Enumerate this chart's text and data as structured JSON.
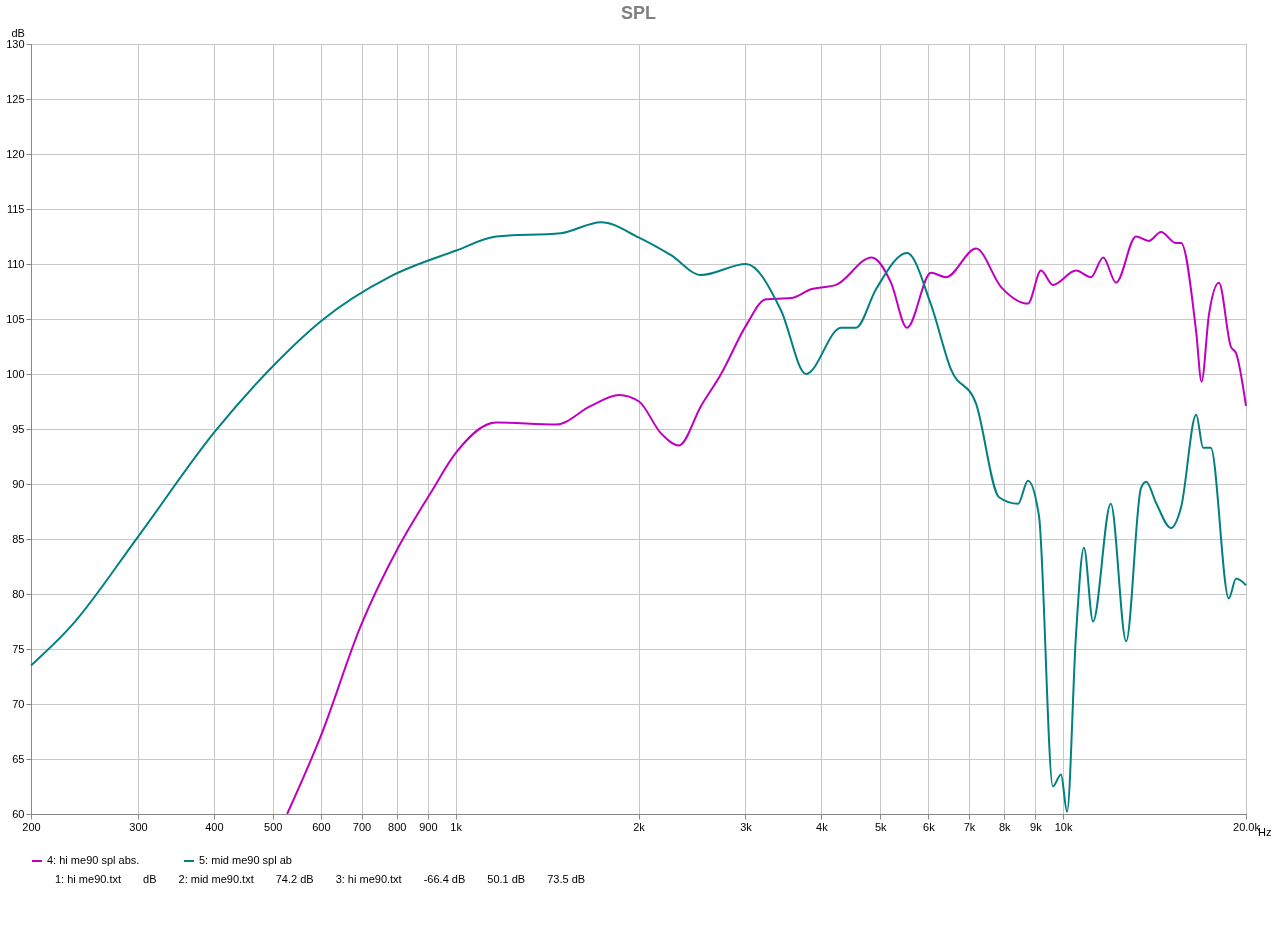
{
  "chart_data": {
    "type": "line",
    "title": "SPL",
    "xlabel": "Hz",
    "ylabel": "dB",
    "log": "x",
    "grid": true,
    "legend": "bottom",
    "line_style": "solid",
    "marker": "none",
    "xlim": [
      200,
      20000
    ],
    "xticks": [
      200,
      300,
      400,
      500,
      600,
      700,
      800,
      900,
      {
        "value": 1000,
        "label": "1k"
      },
      {
        "value": 2000,
        "label": "2k"
      },
      {
        "value": 3000,
        "label": "3k"
      },
      {
        "value": 4000,
        "label": "4k"
      },
      {
        "value": 5000,
        "label": "5k"
      },
      {
        "value": 6000,
        "label": "6k"
      },
      {
        "value": 7000,
        "label": "7k"
      },
      {
        "value": 8000,
        "label": "8k"
      },
      {
        "value": 9000,
        "label": "9k"
      },
      {
        "value": 10000,
        "label": "10k"
      },
      {
        "value": 20000,
        "label": "20.0k"
      }
    ],
    "ylim": [
      60,
      130
    ],
    "yticks": [
      60,
      65,
      70,
      75,
      80,
      85,
      90,
      95,
      100,
      105,
      110,
      115,
      120,
      125,
      130
    ],
    "series": [
      {
        "name": "4: hi me90 spl abs.",
        "color": "#c000c0",
        "x": [
          528,
          600,
          698,
          804,
          910,
          1000,
          1166,
          1463,
          1670,
          1858,
          2004,
          2178,
          2332,
          2535,
          2735,
          3006,
          3242,
          3566,
          3846,
          4228,
          4840,
          5208,
          5534,
          6061,
          6413,
          7188,
          7906,
          8752,
          9196,
          9620,
          10500,
          11110,
          11640,
          12220,
          13180,
          13840,
          14490,
          15340,
          15640,
          16560,
          16900,
          17380,
          18050,
          18880,
          19260,
          20000
        ],
        "values": [
          60,
          67.1,
          77.1,
          84.2,
          89.2,
          92.8,
          95.6,
          95.4,
          97.1,
          98.1,
          97.5,
          94.6,
          93.5,
          97.1,
          100,
          104.4,
          106.8,
          106.9,
          107.7,
          108.1,
          110.6,
          108.3,
          104.2,
          109.2,
          108.8,
          111.4,
          107.9,
          106.4,
          109.4,
          108.1,
          109.4,
          108.8,
          110.6,
          108.3,
          112.5,
          112.1,
          112.9,
          111.9,
          111.9,
          103.8,
          99.3,
          105.4,
          108.3,
          102.5,
          101.9,
          97.1
        ]
      },
      {
        "name": "5: mid me90 spl ab",
        "color": "#008080",
        "x": [
          200,
          233,
          300,
          402,
          502,
          600,
          783,
          1000,
          1166,
          1490,
          1735,
          2004,
          2262,
          2535,
          3006,
          3432,
          3774,
          4309,
          4560,
          4920,
          5534,
          6061,
          6540,
          7188,
          7842,
          8430,
          8752,
          9125,
          9620,
          9920,
          10150,
          10500,
          10820,
          11200,
          11980,
          12700,
          13430,
          13700,
          14220,
          15050,
          15640,
          16560,
          17000,
          17500,
          18740,
          19260,
          20000
        ],
        "values": [
          73.5,
          77.1,
          85.2,
          94.8,
          100.8,
          104.8,
          108.9,
          111.2,
          112.5,
          112.8,
          113.8,
          112.4,
          110.8,
          109,
          110,
          105.8,
          100,
          104.2,
          104.2,
          107.7,
          111,
          106.3,
          100.4,
          97.3,
          88.8,
          88.2,
          90.3,
          87.1,
          62.5,
          63.6,
          60.2,
          76.3,
          84.2,
          77.5,
          88.2,
          75.7,
          89.6,
          90.2,
          88.3,
          86,
          87.9,
          96.3,
          93.3,
          93.3,
          79.6,
          81.4,
          80.8
        ]
      }
    ],
    "annotations": [
      "1: hi me90.txt",
      "dB",
      "2: mid me90.txt",
      "74.2 dB",
      "3: hi me90.txt",
      "-66.4 dB",
      "50.1 dB",
      "73.5 dB"
    ]
  }
}
